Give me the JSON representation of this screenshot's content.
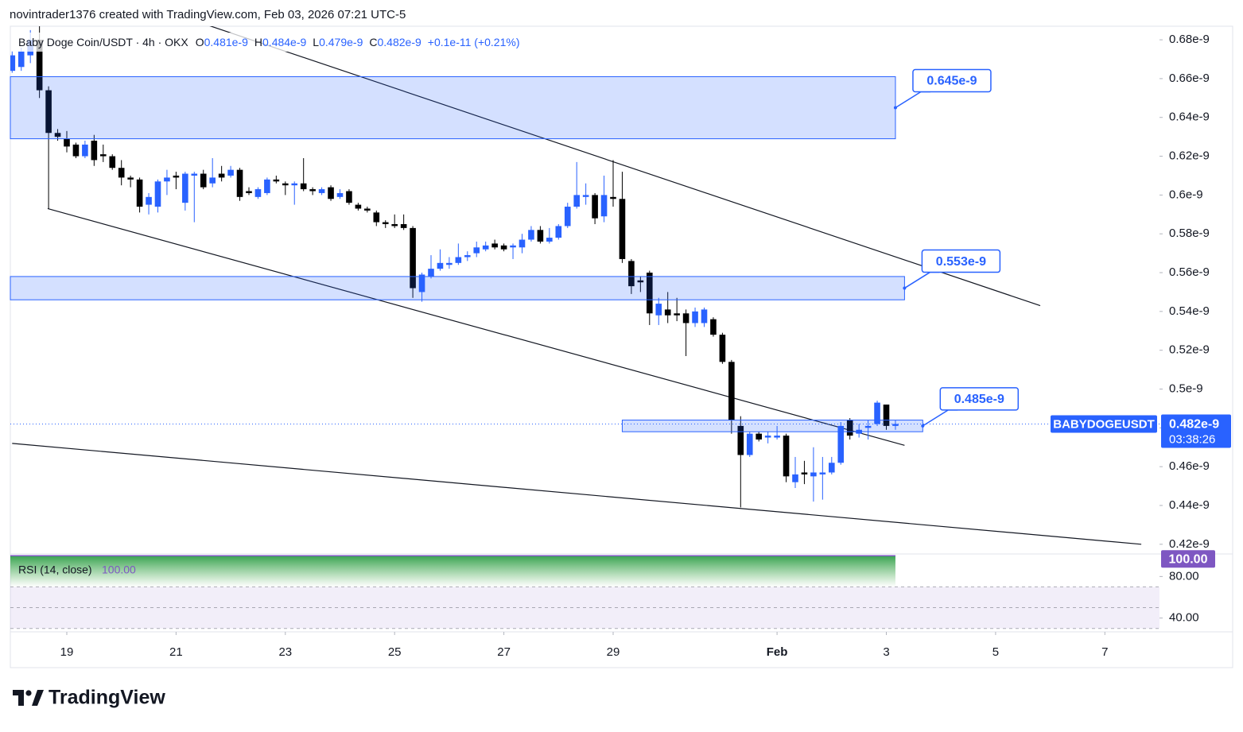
{
  "header": {
    "byline": "novintrader1376 created with TradingView.com, Feb 03, 2026 07:21 UTC-5",
    "symbol": "Baby Doge Coin/USDT · 4h · OKX",
    "ohlc": [
      {
        "key": "O",
        "value": "0.481e-9"
      },
      {
        "key": "H",
        "value": "0.484e-9"
      },
      {
        "key": "L",
        "value": "0.479e-9"
      },
      {
        "key": "C",
        "value": "0.482e-9"
      }
    ],
    "change": "+0.1e-11 (+0.21%)"
  },
  "chart_data": {
    "type": "candlestick",
    "up_color": "#2962ff",
    "down_color": "#000000",
    "xlim": [
      -0.2,
      126
    ],
    "xticks": [
      {
        "value": 6,
        "label": "19"
      },
      {
        "value": 18,
        "label": "21"
      },
      {
        "value": 30,
        "label": "23"
      },
      {
        "value": 42,
        "label": "25"
      },
      {
        "value": 54,
        "label": "27"
      },
      {
        "value": 66,
        "label": "29"
      },
      {
        "value": 84,
        "label": "Feb"
      },
      {
        "value": 96,
        "label": "3"
      },
      {
        "value": 108,
        "label": "5"
      },
      {
        "value": 120,
        "label": "7"
      }
    ],
    "ylim": [
      4.15e-10,
      6.87e-10
    ],
    "yticks": [
      {
        "value": 4.2e-10,
        "label": "0.42e-9"
      },
      {
        "value": 4.4e-10,
        "label": "0.44e-9"
      },
      {
        "value": 4.6e-10,
        "label": "0.46e-9"
      },
      {
        "value": 4.8e-10,
        "label": "0.48e-9"
      },
      {
        "value": 5e-10,
        "label": "0.5e-9"
      },
      {
        "value": 5.2e-10,
        "label": "0.52e-9"
      },
      {
        "value": 5.4e-10,
        "label": "0.54e-9"
      },
      {
        "value": 5.6e-10,
        "label": "0.56e-9"
      },
      {
        "value": 5.8e-10,
        "label": "0.58e-9"
      },
      {
        "value": 6e-10,
        "label": "0.6e-9"
      },
      {
        "value": 6.2e-10,
        "label": "0.62e-9"
      },
      {
        "value": 6.4e-10,
        "label": "0.64e-9"
      },
      {
        "value": 6.6e-10,
        "label": "0.66e-9"
      },
      {
        "value": 6.8e-10,
        "label": "0.68e-9"
      }
    ],
    "open": [
      6.64e-10,
      6.66e-10,
      6.72e-10,
      6.8e-10,
      6.54e-10,
      6.32e-10,
      6.29e-10,
      6.26e-10,
      6.2e-10,
      6.28e-10,
      6.21e-10,
      6.2e-10,
      6.14e-10,
      6.09e-10,
      6.08e-10,
      5.95e-10,
      5.94e-10,
      6.07e-10,
      6.1e-10,
      5.96e-10,
      6.1e-10,
      6.11e-10,
      6.06e-10,
      6.11e-10,
      6.1e-10,
      6.13e-10,
      6.02e-10,
      5.99e-10,
      6.01e-10,
      6.08e-10,
      6.06e-10,
      6.05e-10,
      6.06e-10,
      6.03e-10,
      6.01e-10,
      6.04e-10,
      5.99e-10,
      6.02e-10,
      5.95e-10,
      5.93e-10,
      5.91e-10,
      5.86e-10,
      5.85e-10,
      5.85e-10,
      5.83e-10,
      5.5e-10,
      5.58e-10,
      5.62e-10,
      5.64e-10,
      5.65e-10,
      5.68e-10,
      5.7e-10,
      5.72e-10,
      5.75e-10,
      5.74e-10,
      5.73e-10,
      5.73e-10,
      5.77e-10,
      5.82e-10,
      5.76e-10,
      5.78e-10,
      5.84e-10,
      5.94e-10,
      5.99e-10,
      6e-10,
      5.89e-10,
      5.99e-10,
      5.98e-10,
      5.66e-10,
      5.56e-10,
      5.6e-10,
      5.38e-10,
      5.41e-10,
      5.39e-10,
      5.39e-10,
      5.34e-10,
      5.34e-10,
      5.36e-10,
      5.28e-10,
      5.14e-10,
      4.81e-10,
      4.66e-10,
      4.77e-10,
      4.75e-10,
      4.75e-10,
      4.76e-10,
      4.52e-10,
      4.57e-10,
      4.55e-10,
      4.56e-10,
      4.57e-10,
      4.62e-10,
      4.84e-10,
      4.77e-10,
      4.8e-10,
      4.82e-10,
      4.92e-10,
      4.81e-10
    ],
    "high": [
      6.74e-10,
      6.76e-10,
      6.85e-10,
      6.9e-10,
      6.56e-10,
      6.34e-10,
      6.33e-10,
      6.27e-10,
      6.28e-10,
      6.31e-10,
      6.26e-10,
      6.21e-10,
      6.18e-10,
      6.1e-10,
      6.09e-10,
      6.01e-10,
      6.08e-10,
      6.13e-10,
      6.12e-10,
      6.12e-10,
      6.12e-10,
      6.13e-10,
      6.19e-10,
      6.15e-10,
      6.15e-10,
      6.14e-10,
      6.04e-10,
      6.04e-10,
      6.09e-10,
      6.1e-10,
      6.07e-10,
      6.07e-10,
      6.19e-10,
      6.04e-10,
      6.04e-10,
      6.05e-10,
      6.03e-10,
      6.03e-10,
      5.96e-10,
      5.94e-10,
      5.92e-10,
      5.87e-10,
      5.9e-10,
      5.9e-10,
      5.84e-10,
      5.6e-10,
      5.69e-10,
      5.72e-10,
      5.68e-10,
      5.75e-10,
      5.71e-10,
      5.76e-10,
      5.76e-10,
      5.77e-10,
      5.75e-10,
      5.75e-10,
      5.8e-10,
      5.84e-10,
      5.84e-10,
      5.83e-10,
      5.85e-10,
      5.96e-10,
      6.17e-10,
      6.06e-10,
      6.01e-10,
      6.1e-10,
      6.18e-10,
      6.12e-10,
      5.67e-10,
      5.58e-10,
      5.61e-10,
      5.47e-10,
      5.5e-10,
      5.47e-10,
      5.41e-10,
      5.42e-10,
      5.42e-10,
      5.37e-10,
      5.29e-10,
      5.15e-10,
      4.86e-10,
      4.78e-10,
      4.78e-10,
      4.78e-10,
      4.81e-10,
      4.77e-10,
      4.65e-10,
      4.63e-10,
      4.7e-10,
      4.65e-10,
      4.65e-10,
      4.83e-10,
      4.85e-10,
      4.82e-10,
      4.84e-10,
      4.94e-10,
      4.92e-10,
      4.84e-10
    ],
    "low": [
      6.63e-10,
      6.64e-10,
      6.68e-10,
      6.5e-10,
      5.93e-10,
      6.28e-10,
      6.22e-10,
      6.19e-10,
      6.19e-10,
      6.15e-10,
      6.17e-10,
      6.13e-10,
      6.05e-10,
      6.04e-10,
      5.91e-10,
      5.9e-10,
      5.91e-10,
      6e-10,
      6.03e-10,
      5.92e-10,
      5.86e-10,
      6.03e-10,
      6.04e-10,
      6.07e-10,
      6.09e-10,
      5.97e-10,
      6e-10,
      5.98e-10,
      6e-10,
      6.06e-10,
      6e-10,
      5.95e-10,
      6.02e-10,
      6e-10,
      6e-10,
      5.97e-10,
      5.98e-10,
      5.95e-10,
      5.92e-10,
      5.91e-10,
      5.84e-10,
      5.83e-10,
      5.83e-10,
      5.82e-10,
      5.47e-10,
      5.45e-10,
      5.57e-10,
      5.61e-10,
      5.62e-10,
      5.64e-10,
      5.66e-10,
      5.68e-10,
      5.71e-10,
      5.72e-10,
      5.71e-10,
      5.67e-10,
      5.7e-10,
      5.76e-10,
      5.75e-10,
      5.75e-10,
      5.77e-10,
      5.83e-10,
      5.93e-10,
      5.95e-10,
      5.85e-10,
      5.86e-10,
      5.94e-10,
      5.65e-10,
      5.49e-10,
      5.5e-10,
      5.33e-10,
      5.33e-10,
      5.34e-10,
      5.35e-10,
      5.17e-10,
      5.32e-10,
      5.32e-10,
      5.27e-10,
      5.13e-10,
      4.77e-10,
      4.39e-10,
      4.65e-10,
      4.73e-10,
      4.72e-10,
      4.74e-10,
      4.52e-10,
      4.49e-10,
      4.51e-10,
      4.42e-10,
      4.43e-10,
      4.56e-10,
      4.61e-10,
      4.74e-10,
      4.75e-10,
      4.74e-10,
      4.81e-10,
      4.79e-10,
      4.79e-10
    ],
    "close": [
      6.72e-10,
      6.74e-10,
      6.8e-10,
      6.54e-10,
      6.32e-10,
      6.3e-10,
      6.25e-10,
      6.2e-10,
      6.26e-10,
      6.18e-10,
      6.2e-10,
      6.14e-10,
      6.09e-10,
      6.08e-10,
      5.94e-10,
      5.99e-10,
      6.07e-10,
      6.09e-10,
      6.09e-10,
      6.11e-10,
      6.11e-10,
      6.04e-10,
      6.09e-10,
      6.09e-10,
      6.13e-10,
      5.99e-10,
      6.01e-10,
      6.03e-10,
      6.08e-10,
      6.07e-10,
      6.05e-10,
      6.06e-10,
      6.03e-10,
      6.02e-10,
      6.03e-10,
      5.98e-10,
      6.01e-10,
      5.96e-10,
      5.93e-10,
      5.92e-10,
      5.86e-10,
      5.85e-10,
      5.84e-10,
      5.83e-10,
      5.52e-10,
      5.59e-10,
      5.62e-10,
      5.65e-10,
      5.65e-10,
      5.68e-10,
      5.69e-10,
      5.73e-10,
      5.74e-10,
      5.73e-10,
      5.72e-10,
      5.74e-10,
      5.77e-10,
      5.82e-10,
      5.76e-10,
      5.78e-10,
      5.84e-10,
      5.94e-10,
      6e-10,
      6e-10,
      5.88e-10,
      6e-10,
      5.98e-10,
      5.67e-10,
      5.53e-10,
      5.55e-10,
      5.39e-10,
      5.44e-10,
      5.38e-10,
      5.38e-10,
      5.34e-10,
      5.4e-10,
      5.41e-10,
      5.28e-10,
      5.14e-10,
      4.84e-10,
      4.66e-10,
      4.77e-10,
      4.74e-10,
      4.76e-10,
      4.76e-10,
      4.55e-10,
      4.56e-10,
      4.56e-10,
      4.57e-10,
      4.57e-10,
      4.62e-10,
      4.81e-10,
      4.76e-10,
      4.79e-10,
      4.81e-10,
      4.93e-10,
      4.81e-10,
      4.82e-10
    ],
    "zones": [
      {
        "top": 6.61e-10,
        "bottom": 6.29e-10,
        "start": -0.2,
        "end": 97,
        "label": "0.645e-9"
      },
      {
        "top": 5.58e-10,
        "bottom": 5.46e-10,
        "start": -0.2,
        "end": 98,
        "label": "0.553e-9"
      },
      {
        "top": 4.84e-10,
        "bottom": 4.78e-10,
        "start": 67,
        "end": 100,
        "label": "0.485e-9"
      }
    ],
    "trendlines": [
      {
        "x": [
          21.2,
          112.9
        ],
        "y": [
          6.88e-10,
          5.43e-10
        ]
      },
      {
        "x": [
          3.9,
          98
        ],
        "y": [
          5.93e-10,
          4.71e-10
        ]
      },
      {
        "x": [
          0,
          124
        ],
        "y": [
          4.72e-10,
          4.2e-10
        ]
      }
    ],
    "last_price": {
      "value": 4.82e-10,
      "label": "0.482e-9",
      "ticker": "BABYDOGEUSDT",
      "countdown": "03:38:26"
    },
    "rsi": {
      "title": "RSI (14, close)",
      "value": 100,
      "value_label": "100.00",
      "color": "#7e57c2",
      "ylim": [
        26.7,
        101.7
      ],
      "yticks": [
        {
          "value": 80,
          "label": "80.00"
        },
        {
          "value": 40,
          "label": "40.00"
        }
      ],
      "levels": [
        70,
        50,
        30
      ]
    }
  },
  "footer": {
    "brand": "TradingView"
  }
}
